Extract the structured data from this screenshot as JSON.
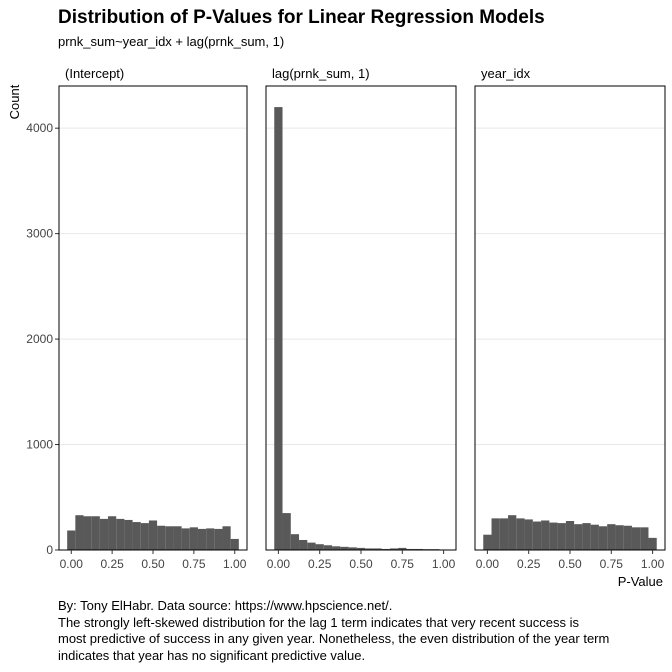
{
  "title": "Distribution of P-Values for Linear Regression Models",
  "subtitle": "prnk_sum~year_idx + lag(prnk_sum, 1)",
  "caption": {
    "lines": [
      "By: Tony ElHabr. Data source: https://www.hpscience.net/.",
      "The strongly left-skewed distribution for the lag 1 term indicates that very recent success is",
      "most predictive of success in any given year. Nonetheless, the even distribution of the year term",
      "indicates that year has no significant predictive value."
    ]
  },
  "chart_data": {
    "type": "bar",
    "xlabel": "P-Value",
    "ylabel": "Count",
    "ylim": [
      0,
      4400
    ],
    "xlim": [
      -0.075,
      1.075
    ],
    "y_ticks": [
      0,
      1000,
      2000,
      3000,
      4000
    ],
    "x_ticks": [
      "0.00",
      "0.25",
      "0.50",
      "0.75",
      "1.00"
    ],
    "x_tick_values": [
      0,
      0.25,
      0.5,
      0.75,
      1.0
    ],
    "bin_width": 0.05,
    "bin_centers": [
      0,
      0.05,
      0.1,
      0.15,
      0.2,
      0.25,
      0.3,
      0.35,
      0.4,
      0.45,
      0.5,
      0.55,
      0.6,
      0.65,
      0.7,
      0.75,
      0.8,
      0.85,
      0.9,
      0.95,
      1.0
    ],
    "grid": true,
    "bar_color": "#595959",
    "panel_border_color": "#000000",
    "grid_color": "#e8e8e8",
    "facets": [
      {
        "name": "(Intercept)",
        "values": [
          185,
          330,
          320,
          320,
          295,
          320,
          295,
          285,
          265,
          255,
          280,
          230,
          225,
          225,
          205,
          215,
          200,
          205,
          200,
          225,
          105
        ]
      },
      {
        "name": "lag(prnk_sum, 1)",
        "values": [
          4200,
          350,
          150,
          95,
          70,
          55,
          45,
          35,
          30,
          25,
          20,
          15,
          15,
          10,
          15,
          20,
          10,
          10,
          8,
          8,
          5
        ]
      },
      {
        "name": "year_idx",
        "values": [
          145,
          300,
          300,
          330,
          300,
          290,
          270,
          280,
          260,
          255,
          275,
          245,
          255,
          240,
          225,
          245,
          235,
          230,
          215,
          215,
          115
        ]
      }
    ]
  }
}
